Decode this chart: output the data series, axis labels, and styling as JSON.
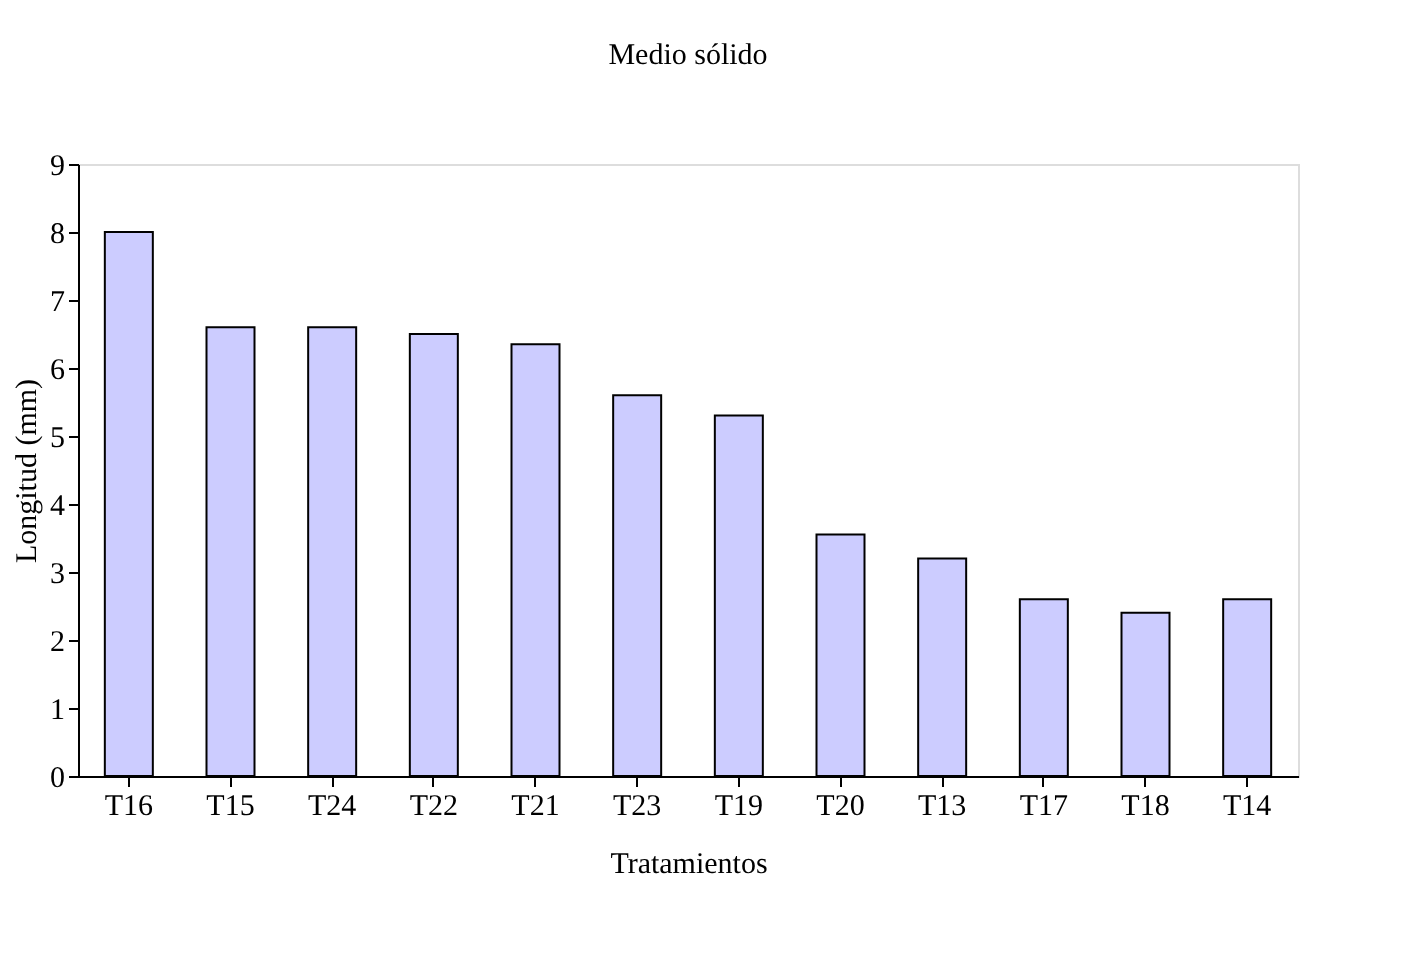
{
  "chart_data": {
    "type": "bar",
    "title": "Medio sólido",
    "xlabel": "Tratamientos",
    "ylabel": "Longitud (mm)",
    "categories": [
      "T16",
      "T15",
      "T24",
      "T22",
      "T21",
      "T23",
      "T19",
      "T20",
      "T13",
      "T17",
      "T18",
      "T14"
    ],
    "values": [
      8.0,
      6.6,
      6.6,
      6.5,
      6.35,
      5.6,
      5.3,
      3.55,
      3.2,
      2.6,
      2.4,
      2.6
    ],
    "color": "#ccccff",
    "ylim": [
      0,
      9
    ],
    "yticks": [
      0,
      1,
      2,
      3,
      4,
      5,
      6,
      7,
      8,
      9
    ],
    "grid": false
  }
}
